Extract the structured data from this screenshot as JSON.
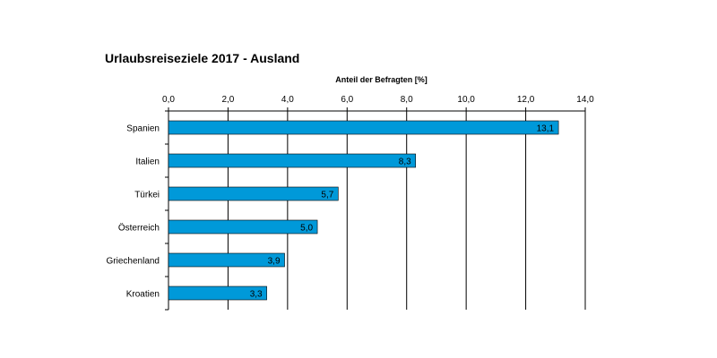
{
  "chart_data": {
    "type": "bar",
    "orientation": "horizontal",
    "title": "Urlaubsreiseziele 2017 - Ausland",
    "xlabel": "Anteil der Befragten [%]",
    "ylabel": "",
    "categories": [
      "Spanien",
      "Italien",
      "Türkei",
      "Österreich",
      "Griechenland",
      "Kroatien"
    ],
    "values": [
      13.1,
      8.3,
      5.7,
      5.0,
      3.9,
      3.3
    ],
    "data_labels": [
      "13,1",
      "8,3",
      "5,7",
      "5,0",
      "3,9",
      "3,3"
    ],
    "xlim": [
      0,
      14
    ],
    "ticks": [
      0,
      2,
      4,
      6,
      8,
      10,
      12,
      14
    ],
    "tick_labels": [
      "0,0",
      "2,0",
      "4,0",
      "6,0",
      "8,0",
      "10,0",
      "12,0",
      "14,0"
    ],
    "x_axis_position": "top",
    "grid": true,
    "legend": "none",
    "bar_color": "#0099d9",
    "grid_color": "#000000"
  }
}
